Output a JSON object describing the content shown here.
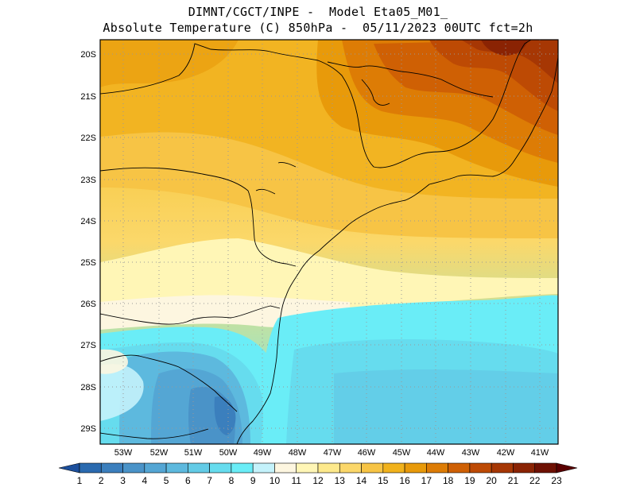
{
  "title": {
    "line1": "DIMNT/CGCT/INPE -  Model Eta05_M01_",
    "line2": "Absolute Temperature (C) 850hPa -  05/11/2023 00UTC fct=2h"
  },
  "map": {
    "lat_labels": [
      "20S",
      "21S",
      "22S",
      "23S",
      "24S",
      "25S",
      "26S",
      "27S",
      "28S",
      "29S"
    ],
    "lon_labels": [
      "53W",
      "52W",
      "51W",
      "50W",
      "49W",
      "48W",
      "47W",
      "46W",
      "45W",
      "44W",
      "43W",
      "42W",
      "41W"
    ],
    "extent": {
      "lon_min": -53.7,
      "lon_max": -40.6,
      "lat_max": -19.8,
      "lat_min": -29.4
    }
  },
  "colorbar": {
    "labels": [
      "1",
      "2",
      "3",
      "4",
      "5",
      "6",
      "7",
      "8",
      "9",
      "10",
      "11",
      "12",
      "13",
      "14",
      "15",
      "16",
      "17",
      "18",
      "19",
      "20",
      "21",
      "22",
      "23"
    ],
    "colors": [
      "#1c4f9c",
      "#2a6aaf",
      "#3b7fbd",
      "#4a93c8",
      "#54a6d4",
      "#5db9de",
      "#63cbe6",
      "#66dcee",
      "#6aedf7",
      "#c4f2fb",
      "#fdf6e0",
      "#fff6b6",
      "#fde98c",
      "#fbd76a",
      "#f7c445",
      "#f1b21c",
      "#e89a0a",
      "#dd7c05",
      "#cf6004",
      "#bd4a04",
      "#a63704",
      "#8a2303",
      "#6e1002",
      "#5a0000"
    ]
  }
}
